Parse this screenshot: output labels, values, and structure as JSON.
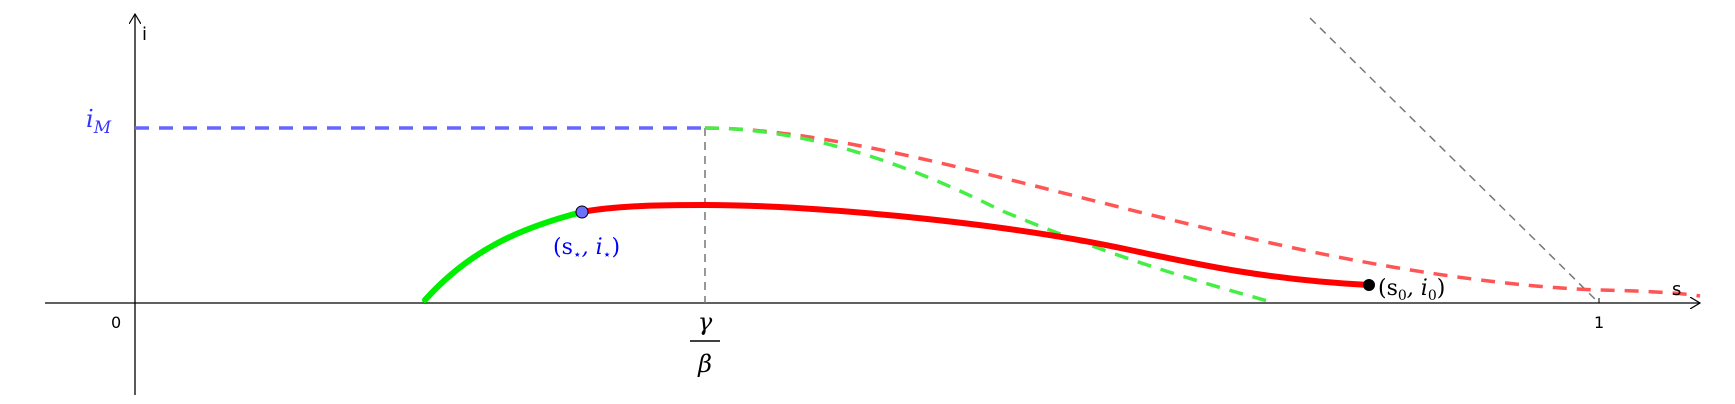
{
  "axes": {
    "x_label": "s",
    "y_label": "i",
    "origin_label": "0",
    "x_tick_one": "1"
  },
  "labels": {
    "i_max": "i",
    "i_max_sub": "M",
    "gamma": "γ",
    "beta": "β",
    "star_point_open": "(s",
    "star_sub": "⋆",
    "star_point_mid": ", i",
    "star_point_close": ")",
    "init_point_open": "(s",
    "init_sub": "0",
    "init_point_mid": ", i",
    "init_point_close": ")"
  },
  "colors": {
    "axis": "#000000",
    "blue_dashed": "#6666ff",
    "star_label": "#0000ff",
    "star_dot": "#6f6fff",
    "green": "#00ee00",
    "green_dashed": "#44ee44",
    "red": "#ff0000",
    "red_dashed": "#ff5555",
    "grey_dashed": "#777777"
  }
}
